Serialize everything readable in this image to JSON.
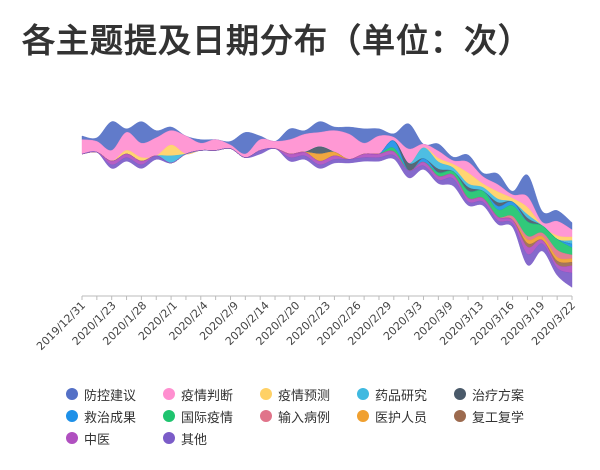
{
  "chart_data": {
    "type": "area",
    "variant": "streamgraph",
    "title": "各主题提及日期分布（单位：次）",
    "x_tick_labels": [
      "2019/12/31",
      "2020/1/23",
      "2020/1/28",
      "2020/2/1",
      "2020/2/4",
      "2020/2/9",
      "2020/2/14",
      "2020/2/20",
      "2020/2/23",
      "2020/2/26",
      "2020/2/29",
      "2020/3/3",
      "2020/3/9",
      "2020/3/13",
      "2020/3/16",
      "2020/3/19",
      "2020/3/22"
    ],
    "grid": false,
    "legend_position": "bottom",
    "series": [
      {
        "name": "防控建议",
        "color": "#5470c6",
        "values": [
          1,
          1,
          8,
          1,
          6,
          2,
          1,
          0,
          1,
          0,
          1,
          6,
          1,
          0,
          3,
          1,
          3,
          1,
          2,
          4,
          2,
          1,
          7,
          0,
          2,
          1,
          2,
          1,
          3,
          1,
          6,
          3,
          3,
          2
        ]
      },
      {
        "name": "疫情判断",
        "color": "#ff8fd0",
        "values": [
          4,
          3,
          3,
          5,
          4,
          5,
          4,
          5,
          2,
          3,
          1,
          1,
          3,
          2,
          4,
          5,
          4,
          6,
          7,
          3,
          5,
          1,
          4,
          1,
          2,
          1,
          3,
          2,
          2,
          1,
          3,
          1,
          4,
          2
        ]
      },
      {
        "name": "疫情预测",
        "color": "#ffd166",
        "values": [
          0,
          0,
          0,
          1,
          1,
          0,
          3,
          0,
          0,
          0,
          0,
          0,
          0,
          0,
          0,
          0,
          0,
          0,
          0,
          0,
          0,
          0,
          0,
          0,
          1,
          1,
          3,
          1,
          2,
          1,
          2,
          0,
          1,
          1
        ]
      },
      {
        "name": "药品研究",
        "color": "#3fb9e0",
        "values": [
          0,
          0,
          0,
          0,
          0,
          0,
          2,
          0,
          0,
          0,
          0,
          0,
          0,
          0,
          0,
          0,
          0,
          0,
          0,
          0,
          0,
          0,
          0,
          3,
          2,
          1,
          1,
          1,
          1,
          0,
          1,
          0,
          0,
          1
        ]
      },
      {
        "name": "治疗方案",
        "color": "#4a5a6a",
        "values": [
          0,
          0,
          0,
          0,
          0,
          0,
          0,
          0,
          0,
          0,
          0,
          0,
          0,
          0,
          0,
          0,
          2,
          0,
          0,
          0,
          0,
          0,
          2,
          0,
          1,
          0,
          1,
          0,
          1,
          0,
          1,
          0,
          0,
          0
        ]
      },
      {
        "name": "救治成果",
        "color": "#1e90e8",
        "values": [
          0,
          0,
          0,
          0,
          0,
          0,
          0,
          0,
          0,
          0,
          0,
          0,
          0,
          0,
          0,
          0,
          0,
          0,
          0,
          0,
          0,
          2,
          0,
          1,
          0,
          0,
          0,
          0,
          1,
          1,
          0,
          0,
          0,
          1
        ]
      },
      {
        "name": "国际疫情",
        "color": "#1fc46f",
        "values": [
          0,
          0,
          0,
          0,
          0,
          0,
          0,
          0,
          0,
          0,
          0,
          0,
          0,
          0,
          0,
          0,
          0,
          0,
          0,
          0,
          0,
          1,
          0,
          0,
          1,
          1,
          2,
          2,
          2,
          3,
          4,
          2,
          3,
          2
        ]
      },
      {
        "name": "输入病例",
        "color": "#e0748a",
        "values": [
          0,
          0,
          0,
          0,
          0,
          0,
          0,
          0,
          0,
          0,
          0,
          0,
          0,
          0,
          0,
          0,
          0,
          0,
          0,
          0,
          0,
          0,
          0,
          0,
          0,
          0,
          0,
          0,
          0,
          1,
          1,
          1,
          2,
          1
        ]
      },
      {
        "name": "医护人员",
        "color": "#f0a030",
        "values": [
          0,
          0,
          0,
          0,
          0,
          0,
          0,
          0,
          0,
          0,
          0,
          0,
          0,
          0,
          0,
          0,
          2,
          1,
          0,
          0,
          0,
          0,
          0,
          0,
          0,
          0,
          0,
          0,
          0,
          0,
          1,
          1,
          1,
          1
        ]
      },
      {
        "name": "复工复学",
        "color": "#9c6a4e",
        "values": [
          0,
          0,
          0,
          0,
          0,
          0,
          0,
          0,
          0,
          0,
          0,
          0,
          0,
          0,
          0,
          0,
          0,
          0,
          0,
          0,
          0,
          0,
          0,
          0,
          0,
          0,
          0,
          0,
          0,
          0,
          1,
          0,
          1,
          1
        ]
      },
      {
        "name": "中医",
        "color": "#b050c0",
        "values": [
          0,
          0,
          1,
          1,
          1,
          0,
          0,
          0,
          0,
          0,
          0,
          0,
          0,
          0,
          1,
          1,
          1,
          1,
          0,
          1,
          1,
          1,
          0,
          1,
          1,
          1,
          1,
          1,
          1,
          1,
          2,
          1,
          1,
          2
        ]
      },
      {
        "name": "其他",
        "color": "#7b5cc8",
        "values": [
          0,
          0,
          1,
          1,
          1,
          1,
          0,
          0,
          0,
          0,
          0,
          0,
          1,
          0,
          1,
          1,
          1,
          1,
          1,
          1,
          1,
          1,
          2,
          1,
          1,
          2,
          1,
          1,
          1,
          1,
          3,
          2,
          2,
          4
        ]
      }
    ]
  }
}
